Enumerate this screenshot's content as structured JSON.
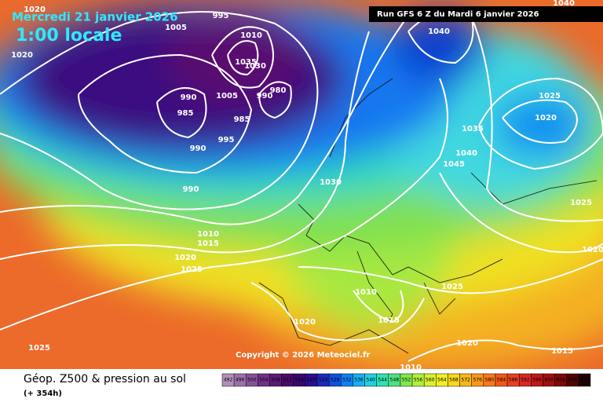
{
  "header": {
    "date": "Mercredi 21 janvier 2026",
    "time": "1:00 locale"
  },
  "run": "Run GFS 6 Z du Mardi 6 janvier 2026",
  "copyright": "Copyright © 2026 Meteociel.fr",
  "footer": {
    "title": "Géop. Z500 & pression au sol",
    "lead": "(+ 354h)"
  },
  "scale": {
    "values": [
      492,
      496,
      500,
      504,
      508,
      512,
      516,
      520,
      524,
      528,
      532,
      536,
      540,
      544,
      548,
      552,
      556,
      560,
      564,
      568,
      572,
      576,
      580,
      584,
      588,
      592,
      596,
      600,
      604,
      608,
      612
    ],
    "colors": [
      "#b090b8",
      "#9a70a8",
      "#86509a",
      "#72308a",
      "#5e1878",
      "#4a0a66",
      "#380a6e",
      "#2a1090",
      "#1a2ab8",
      "#1050e0",
      "#1080f0",
      "#18b0f0",
      "#20d0e0",
      "#30e0b0",
      "#50e080",
      "#80e850",
      "#b0f040",
      "#d8f030",
      "#f0f020",
      "#f8d818",
      "#f8b818",
      "#f89818",
      "#f87818",
      "#f05818",
      "#e84020",
      "#d82820",
      "#c01818",
      "#a01010",
      "#800808",
      "#500404",
      "#200000"
    ]
  },
  "isobar_labels": [
    "1020",
    "995",
    "1005",
    "1020",
    "1010",
    "1035",
    "1030",
    "990",
    "985",
    "1005",
    "990",
    "980",
    "985",
    "995",
    "990",
    "990",
    "1040",
    "1040",
    "1025",
    "1020",
    "1035",
    "1040",
    "1045",
    "1030",
    "1025",
    "1010",
    "1015",
    "1020",
    "1025",
    "1020",
    "1025",
    "1010",
    "1020",
    "1015",
    "1020",
    "1015",
    "1025",
    "1010"
  ]
}
